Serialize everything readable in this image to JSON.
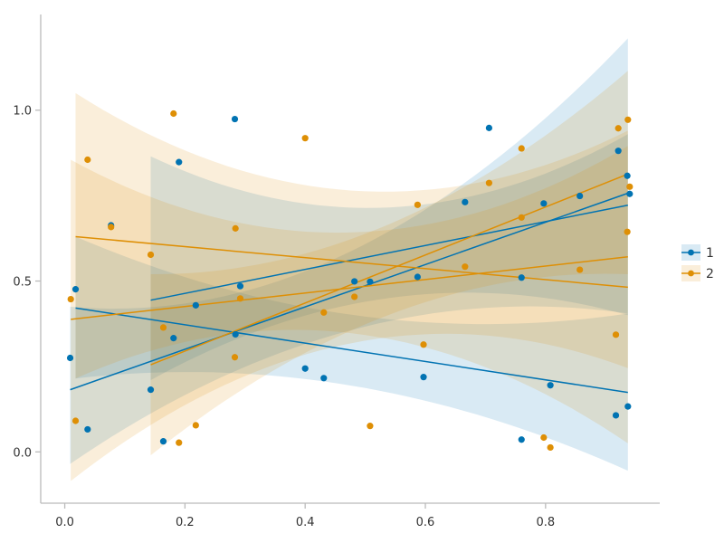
{
  "chart_data": {
    "type": "scatter",
    "title": "",
    "xlabel": "",
    "ylabel": "",
    "xlim": [
      -0.04,
      0.99
    ],
    "ylim": [
      -0.15,
      1.28
    ],
    "xticks": [
      0.0,
      0.2,
      0.4,
      0.6,
      0.8
    ],
    "xtick_labels": [
      "0.0",
      "0.2",
      "0.4",
      "0.6",
      "0.8"
    ],
    "yticks": [
      0.0,
      0.5,
      1.0
    ],
    "ytick_labels": [
      "0.0",
      "0.5",
      "1.0"
    ],
    "grid": false,
    "legend_position": "right",
    "series": [
      {
        "name": "1",
        "color": "#0173b2",
        "points": [
          [
            0.009,
            0.275
          ],
          [
            0.018,
            0.476
          ],
          [
            0.038,
            0.066
          ],
          [
            0.077,
            0.663
          ],
          [
            0.143,
            0.182
          ],
          [
            0.164,
            0.031
          ],
          [
            0.181,
            0.333
          ],
          [
            0.19,
            0.848
          ],
          [
            0.218,
            0.429
          ],
          [
            0.283,
            0.974
          ],
          [
            0.284,
            0.344
          ],
          [
            0.292,
            0.485
          ],
          [
            0.4,
            0.244
          ],
          [
            0.431,
            0.216
          ],
          [
            0.482,
            0.499
          ],
          [
            0.508,
            0.498
          ],
          [
            0.587,
            0.512
          ],
          [
            0.597,
            0.219
          ],
          [
            0.666,
            0.731
          ],
          [
            0.706,
            0.948
          ],
          [
            0.76,
            0.036
          ],
          [
            0.76,
            0.51
          ],
          [
            0.797,
            0.727
          ],
          [
            0.808,
            0.195
          ],
          [
            0.857,
            0.749
          ],
          [
            0.917,
            0.107
          ],
          [
            0.921,
            0.881
          ],
          [
            0.936,
            0.808
          ],
          [
            0.937,
            0.133
          ],
          [
            0.94,
            0.755
          ]
        ],
        "fits": [
          {
            "x": [
              0.009,
              0.937
            ],
            "y": [
              0.182,
              0.757
            ],
            "band_lo": [
              -0.035,
              0.405
            ],
            "band_hi": [
              0.425,
              1.21
            ]
          },
          {
            "x": [
              0.018,
              0.937
            ],
            "y": [
              0.421,
              0.174
            ],
            "band_lo": [
              0.215,
              -0.055
            ],
            "band_hi": [
              0.63,
              0.405
            ]
          },
          {
            "x": [
              0.143,
              0.937
            ],
            "y": [
              0.444,
              0.722
            ],
            "band_lo": [
              0.21,
              0.4
            ],
            "band_hi": [
              0.865,
              0.93
            ]
          }
        ]
      },
      {
        "name": "2",
        "color": "#de8f05",
        "points": [
          [
            0.01,
            0.447
          ],
          [
            0.018,
            0.091
          ],
          [
            0.038,
            0.855
          ],
          [
            0.077,
            0.658
          ],
          [
            0.143,
            0.577
          ],
          [
            0.164,
            0.364
          ],
          [
            0.181,
            0.99
          ],
          [
            0.19,
            0.027
          ],
          [
            0.218,
            0.078
          ],
          [
            0.283,
            0.277
          ],
          [
            0.284,
            0.654
          ],
          [
            0.292,
            0.449
          ],
          [
            0.4,
            0.918
          ],
          [
            0.431,
            0.408
          ],
          [
            0.482,
            0.454
          ],
          [
            0.508,
            0.076
          ],
          [
            0.587,
            0.723
          ],
          [
            0.597,
            0.314
          ],
          [
            0.666,
            0.542
          ],
          [
            0.706,
            0.787
          ],
          [
            0.76,
            0.888
          ],
          [
            0.76,
            0.686
          ],
          [
            0.797,
            0.042
          ],
          [
            0.808,
            0.013
          ],
          [
            0.857,
            0.533
          ],
          [
            0.917,
            0.343
          ],
          [
            0.921,
            0.947
          ],
          [
            0.936,
            0.644
          ],
          [
            0.937,
            0.972
          ],
          [
            0.94,
            0.776
          ]
        ],
        "fits": [
          {
            "x": [
              0.01,
              0.937
            ],
            "y": [
              0.388,
              0.571
            ],
            "band_lo": [
              -0.085,
              0.245
            ],
            "band_hi": [
              0.855,
              0.895
            ]
          },
          {
            "x": [
              0.018,
              0.937
            ],
            "y": [
              0.63,
              0.482
            ],
            "band_lo": [
              0.215,
              0.025
            ],
            "band_hi": [
              1.05,
              0.94
            ]
          },
          {
            "x": [
              0.143,
              0.937
            ],
            "y": [
              0.255,
              0.813
            ],
            "band_lo": [
              -0.01,
              0.52
            ],
            "band_hi": [
              0.52,
              1.115
            ]
          }
        ]
      }
    ]
  }
}
